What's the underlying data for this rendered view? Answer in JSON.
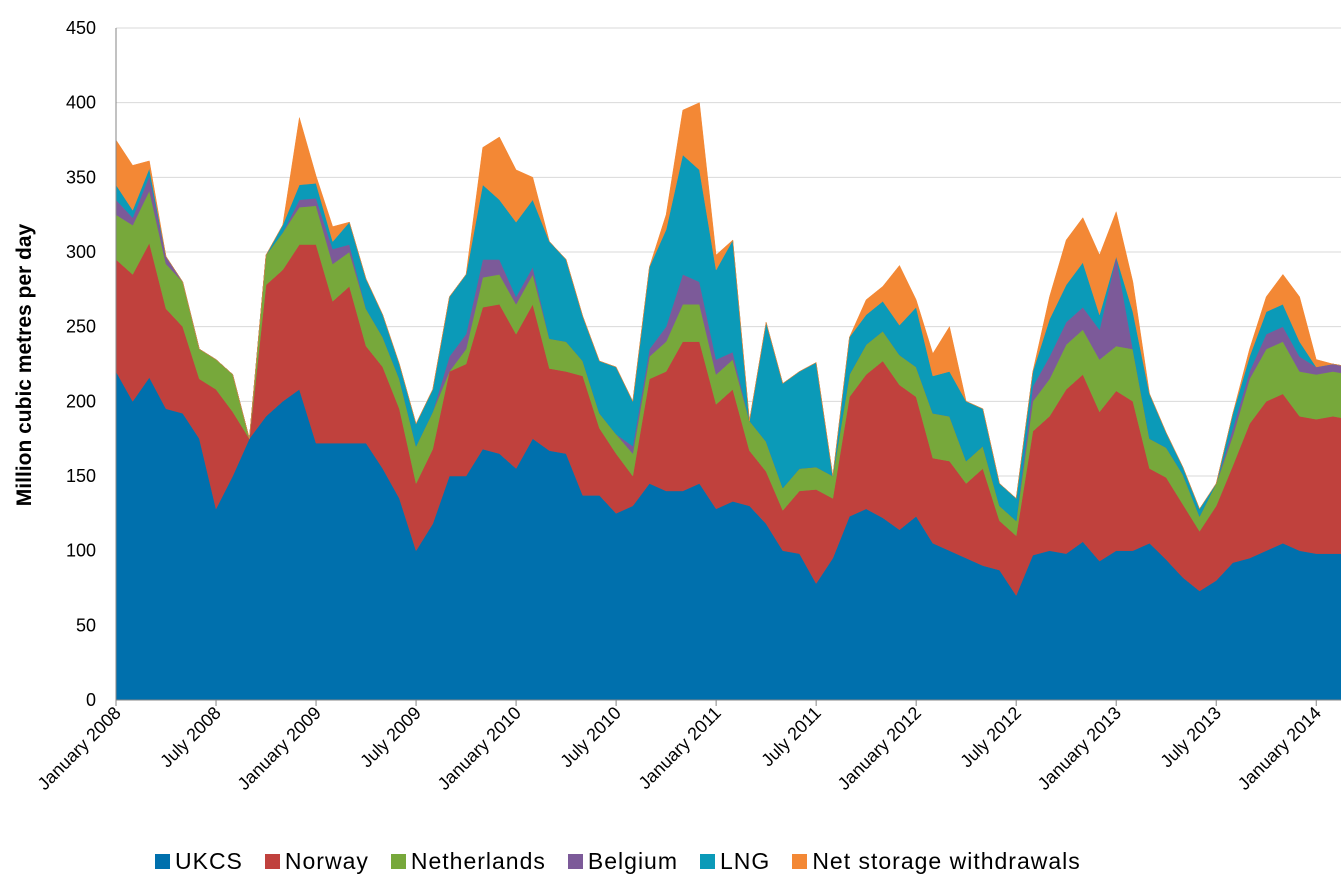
{
  "chart_data": {
    "type": "area",
    "stacked": true,
    "title": "",
    "xlabel": "",
    "ylabel": "Million cubic metres per day",
    "ylim": [
      0,
      450
    ],
    "yticks": [
      0,
      50,
      100,
      150,
      200,
      250,
      300,
      350,
      400,
      450
    ],
    "grid": true,
    "legend_position": "bottom",
    "x_start": "2008-01",
    "x_end": "2014-03",
    "x_tick_labels": [
      "January 2008",
      "July 2008",
      "January 2009",
      "July 2009",
      "January 2010",
      "July 2010",
      "January 2011",
      "July 2011",
      "January 2012",
      "July 2012",
      "January 2013",
      "July 2013",
      "January 2014"
    ],
    "x": [
      "2008-01",
      "2008-02",
      "2008-03",
      "2008-04",
      "2008-05",
      "2008-06",
      "2008-07",
      "2008-08",
      "2008-09",
      "2008-10",
      "2008-11",
      "2008-12",
      "2009-01",
      "2009-02",
      "2009-03",
      "2009-04",
      "2009-05",
      "2009-06",
      "2009-07",
      "2009-08",
      "2009-09",
      "2009-10",
      "2009-11",
      "2009-12",
      "2010-01",
      "2010-02",
      "2010-03",
      "2010-04",
      "2010-05",
      "2010-06",
      "2010-07",
      "2010-08",
      "2010-09",
      "2010-10",
      "2010-11",
      "2010-12",
      "2011-01",
      "2011-02",
      "2011-03",
      "2011-04",
      "2011-05",
      "2011-06",
      "2011-07",
      "2011-08",
      "2011-09",
      "2011-10",
      "2011-11",
      "2011-12",
      "2012-01",
      "2012-02",
      "2012-03",
      "2012-04",
      "2012-05",
      "2012-06",
      "2012-07",
      "2012-08",
      "2012-09",
      "2012-10",
      "2012-11",
      "2012-12",
      "2013-01",
      "2013-02",
      "2013-03",
      "2013-04",
      "2013-05",
      "2013-06",
      "2013-07",
      "2013-08",
      "2013-09",
      "2013-10",
      "2013-11",
      "2013-12",
      "2014-01",
      "2014-02",
      "2014-03"
    ],
    "series": [
      {
        "name": "UKCS",
        "color": "#0070ad",
        "values": [
          220,
          200,
          216,
          195,
          192,
          175,
          128,
          150,
          175,
          190,
          200,
          208,
          172,
          172,
          172,
          172,
          155,
          135,
          100,
          118,
          150,
          150,
          168,
          165,
          155,
          175,
          167,
          165,
          137,
          137,
          125,
          130,
          145,
          140,
          140,
          145,
          128,
          133,
          130,
          118,
          100,
          98,
          78,
          95,
          123,
          128,
          122,
          114,
          123,
          105,
          100,
          95,
          90,
          87,
          70,
          97,
          100,
          98,
          106,
          93,
          100,
          100,
          105,
          94,
          82,
          73,
          80,
          92,
          95,
          100,
          105,
          100,
          98,
          98,
          98
        ]
      },
      {
        "name": "Norway",
        "color": "#c0413d",
        "values": [
          75,
          85,
          90,
          67,
          58,
          40,
          80,
          43,
          0,
          88,
          88,
          97,
          133,
          95,
          105,
          65,
          68,
          60,
          45,
          50,
          70,
          75,
          95,
          100,
          90,
          90,
          55,
          55,
          80,
          45,
          40,
          20,
          70,
          80,
          100,
          95,
          70,
          75,
          37,
          35,
          27,
          42,
          63,
          40,
          80,
          90,
          105,
          97,
          80,
          57,
          60,
          50,
          65,
          33,
          40,
          83,
          90,
          110,
          112,
          100,
          107,
          100,
          50,
          55,
          49,
          40,
          50,
          65,
          90,
          100,
          100,
          90,
          90,
          92,
          90
        ]
      },
      {
        "name": "Netherlands",
        "color": "#77a83b",
        "values": [
          30,
          33,
          35,
          30,
          30,
          20,
          20,
          25,
          0,
          20,
          25,
          25,
          26,
          25,
          23,
          25,
          20,
          20,
          25,
          25,
          0,
          10,
          20,
          20,
          20,
          20,
          20,
          20,
          10,
          10,
          13,
          15,
          15,
          20,
          25,
          25,
          20,
          20,
          20,
          20,
          15,
          15,
          15,
          15,
          15,
          20,
          20,
          20,
          20,
          30,
          30,
          15,
          15,
          10,
          10,
          20,
          25,
          30,
          30,
          35,
          30,
          35,
          20,
          20,
          20,
          10,
          15,
          20,
          30,
          35,
          35,
          30,
          30,
          30,
          30
        ]
      },
      {
        "name": "Belgium",
        "color": "#7c5a99",
        "values": [
          10,
          5,
          10,
          5,
          0,
          0,
          0,
          0,
          0,
          0,
          0,
          5,
          5,
          10,
          5,
          0,
          0,
          0,
          0,
          0,
          10,
          10,
          12,
          10,
          5,
          5,
          0,
          0,
          0,
          0,
          0,
          5,
          5,
          10,
          20,
          15,
          10,
          5,
          0,
          0,
          0,
          0,
          0,
          0,
          0,
          0,
          0,
          0,
          0,
          0,
          0,
          0,
          0,
          0,
          0,
          10,
          15,
          15,
          15,
          20,
          60,
          0,
          0,
          0,
          0,
          0,
          0,
          5,
          5,
          10,
          10,
          10,
          5,
          5,
          5
        ]
      },
      {
        "name": "LNG",
        "color": "#0b9ab8",
        "values": [
          10,
          5,
          5,
          0,
          0,
          0,
          0,
          0,
          0,
          0,
          5,
          10,
          10,
          5,
          15,
          20,
          15,
          10,
          15,
          15,
          40,
          40,
          50,
          40,
          50,
          45,
          65,
          55,
          30,
          35,
          45,
          30,
          55,
          65,
          80,
          75,
          60,
          75,
          0,
          80,
          70,
          65,
          70,
          0,
          25,
          20,
          20,
          20,
          40,
          25,
          30,
          40,
          25,
          15,
          15,
          10,
          25,
          25,
          30,
          10,
          0,
          25,
          30,
          10,
          5,
          5,
          0,
          10,
          10,
          15,
          15,
          10,
          0,
          0,
          0
        ]
      },
      {
        "name": "Net storage withdrawals",
        "color": "#f38835",
        "values": [
          30,
          30,
          5,
          0,
          0,
          0,
          0,
          0,
          0,
          0,
          0,
          45,
          5,
          10,
          0,
          0,
          0,
          0,
          0,
          0,
          0,
          0,
          25,
          42,
          35,
          15,
          0,
          0,
          0,
          0,
          0,
          0,
          0,
          10,
          30,
          45,
          10,
          0,
          0,
          0,
          0,
          0,
          0,
          0,
          0,
          10,
          10,
          40,
          5,
          15,
          30,
          0,
          0,
          0,
          0,
          0,
          15,
          30,
          30,
          40,
          30,
          20,
          0,
          0,
          0,
          0,
          0,
          0,
          5,
          10,
          20,
          30,
          5,
          0,
          0
        ]
      }
    ]
  }
}
